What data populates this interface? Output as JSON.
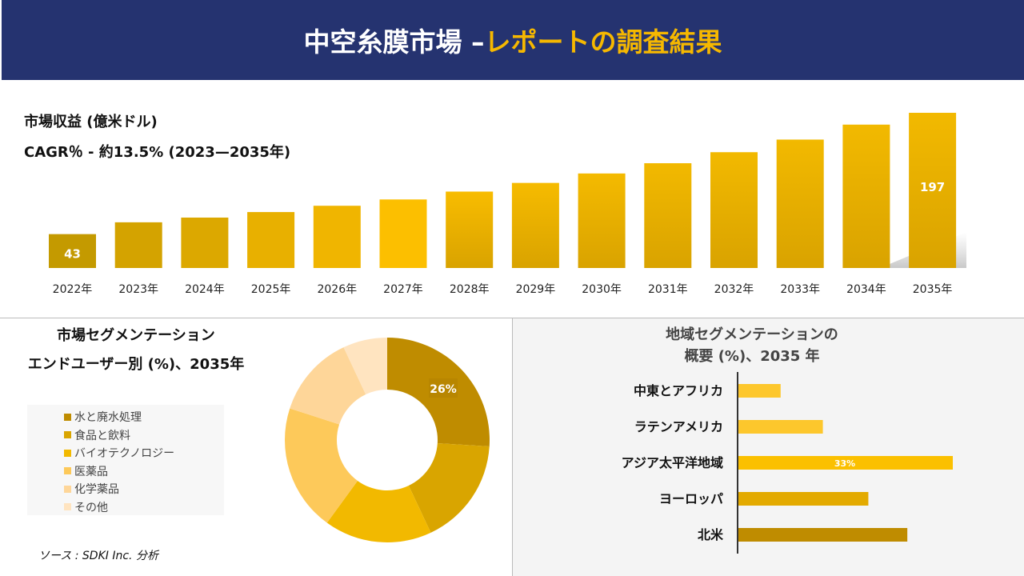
{
  "header": {
    "title_white": "中空糸膜市場 –",
    "title_yellow": "レポートの調査結果"
  },
  "source": "ソース : SDKI Inc. 分析",
  "chart_data": [
    {
      "type": "bar",
      "title": "市場収益 (億米ドル)",
      "subtitle": "CAGR％ - 約13.5% (2023—2035年)",
      "categories": [
        "2022年",
        "2023年",
        "2024年",
        "2025年",
        "2026年",
        "2027年",
        "2028年",
        "2029年",
        "2030年",
        "2031年",
        "2032年",
        "2033年",
        "2034年",
        "2035年"
      ],
      "values": [
        43,
        58,
        64,
        71,
        79,
        87,
        97,
        108,
        120,
        133,
        147,
        163,
        182,
        197
      ],
      "data_labels": {
        "0": "43",
        "13": "197"
      },
      "colors": [
        "#c49a00",
        "#d4a300",
        "#dca800",
        "#e8b000",
        "#f0b500",
        "#fcbf00",
        "#f8bc00",
        "#f6bb00",
        "#f4ba00",
        "#f2b900",
        "#f2b900",
        "#f2b900",
        "#f2b900",
        "#f2b900"
      ]
    },
    {
      "type": "pie",
      "title_line1": "市場セグメンテーション",
      "title_line2": "エンドユーザー別 (%)、2035年",
      "labels": [
        "水と廃水処理",
        "食品と飲料",
        "バイオテクノロジー",
        "医薬品",
        "化学薬品",
        "その他"
      ],
      "values": [
        26,
        17,
        17,
        20,
        13,
        7
      ],
      "colors": [
        "#bf8c00",
        "#d9a500",
        "#f2b900",
        "#fdc95a",
        "#fed699",
        "#ffe4c0"
      ],
      "data_labels": {
        "0": "26%"
      }
    },
    {
      "type": "bar",
      "orientation": "horizontal",
      "title_line1": "地域セグメンテーションの",
      "title_line2": "概要 (%)、2035 年",
      "categories": [
        "中東とアフリカ",
        "ラテンアメリカ",
        "アジア太平洋地域",
        "ヨーロッパ",
        "北米"
      ],
      "values": [
        6.5,
        13,
        33,
        20,
        26
      ],
      "colors": [
        "#fdc72c",
        "#fdc72c",
        "#fbc000",
        "#e3aa00",
        "#bf8c00"
      ],
      "data_labels": {
        "2": "33%"
      }
    }
  ]
}
